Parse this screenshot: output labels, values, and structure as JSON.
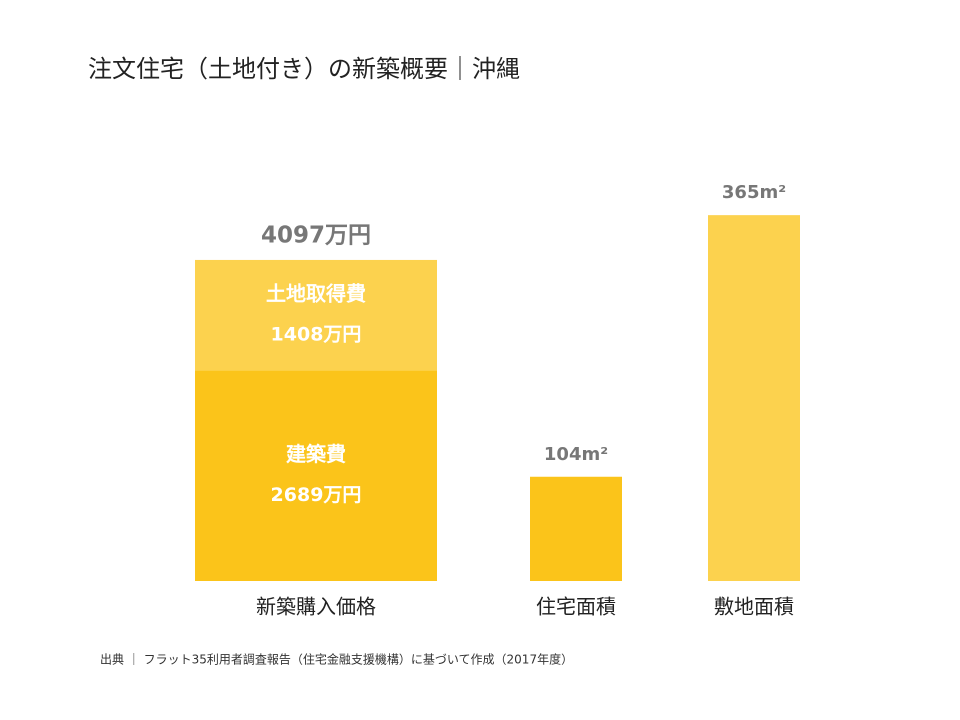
{
  "title": "注文住宅（土地付き）の新築概要｜沖縄",
  "source": "出典 ｜ フラット35利用者調査報告（住宅金融支援機構）に基づいて作成（2017年度）",
  "chart_data": [
    {
      "type": "stacked_bar",
      "categories": [
        "新築購入価格"
      ],
      "series": [
        {
          "name": "建築費",
          "color": "#fbc41a",
          "values": [
            2689
          ],
          "value_labels": [
            "2689万円"
          ]
        },
        {
          "name": "土地取得費",
          "color": "#fcd24e",
          "values": [
            1408
          ],
          "value_labels": [
            "1408万円"
          ]
        }
      ],
      "total": {
        "value": 4097,
        "label": "4097万円"
      },
      "ylim": [
        0,
        5500
      ]
    },
    {
      "type": "bar",
      "categories": [
        "住宅面積",
        "敷地面積"
      ],
      "values": [
        104,
        365
      ],
      "value_labels": [
        "104m²",
        "365m²"
      ],
      "colors": [
        "#fbc41a",
        "#fcd24e"
      ],
      "ylim": [
        0,
        430
      ]
    }
  ]
}
